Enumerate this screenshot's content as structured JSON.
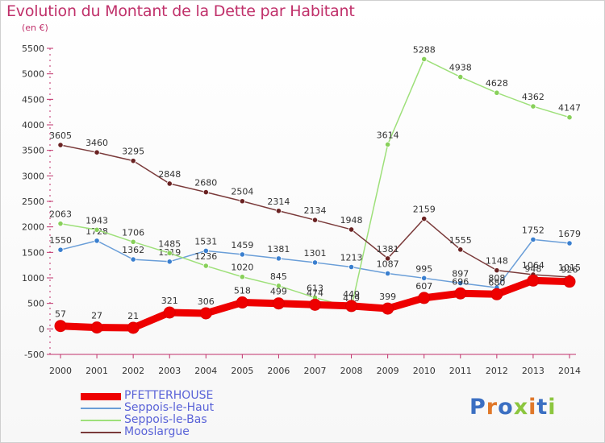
{
  "title": "Evolution du Montant de la Dette par Habitant",
  "subtitle": "(en €)",
  "logo": {
    "text": "Proxiti",
    "letter_colors": [
      "#3b6fc2",
      "#e0782a",
      "#3b6fc2",
      "#8cc63f",
      "#e0782a",
      "#3b6fc2",
      "#8cc63f"
    ]
  },
  "chart_data": {
    "type": "line",
    "title": "Evolution du Montant de la Dette par Habitant",
    "subtitle": "(en €)",
    "x": [
      2000,
      2001,
      2002,
      2003,
      2004,
      2005,
      2006,
      2007,
      2008,
      2009,
      2010,
      2011,
      2012,
      2013,
      2014
    ],
    "x_tick_labels": [
      "2000",
      "2001",
      "2002",
      "2003",
      "2004",
      "2005",
      "2006",
      "2007",
      "2008",
      "2009",
      "2010",
      "2011",
      "2012",
      "2013",
      "2014"
    ],
    "ylim": [
      -500,
      5500
    ],
    "y_ticks": [
      -500,
      0,
      500,
      1000,
      1500,
      2000,
      2500,
      3000,
      3500,
      4000,
      4500,
      5000,
      5500
    ],
    "y_tick_labels": [
      "-500",
      "0",
      "500",
      "1000",
      "1500",
      "2000",
      "2500",
      "3000",
      "3500",
      "4000",
      "4500",
      "5000",
      "5500"
    ],
    "grid": false,
    "legend_position": "bottom-left",
    "series": [
      {
        "name": "PFETTERHOUSE",
        "color": "#ee0000",
        "marker_color": "#ee0000",
        "thick": true,
        "values": [
          57,
          27,
          21,
          321,
          306,
          518,
          499,
          474,
          449,
          399,
          607,
          696,
          680,
          948,
          926
        ],
        "labels": [
          "57",
          "27",
          "21",
          "321",
          "306",
          "518",
          "499",
          "474",
          "449",
          "399",
          "607",
          "696",
          "680",
          "948",
          "926"
        ]
      },
      {
        "name": "Seppois-le-Haut",
        "color": "#6a9ed8",
        "marker_color": "#3a7fcf",
        "thick": false,
        "values": [
          1550,
          1728,
          1362,
          1319,
          1531,
          1459,
          1381,
          1301,
          1213,
          1087,
          995,
          897,
          808,
          1752,
          1679
        ],
        "labels": [
          "1550",
          "1728",
          "1362",
          "1319",
          "1531",
          "1459",
          "1381",
          "1301",
          "1213",
          "1087",
          "995",
          "897",
          "808",
          "1752",
          "1679"
        ]
      },
      {
        "name": "Seppois-le-Bas",
        "color": "#9ee07a",
        "marker_color": "#88d05a",
        "thick": false,
        "values": [
          2063,
          1943,
          1706,
          1485,
          1236,
          1020,
          845,
          613,
          419,
          3614,
          5288,
          4938,
          4628,
          4362,
          4147
        ],
        "labels": [
          "2063",
          "1943",
          "1706",
          "1485",
          "1236",
          "1020",
          "845",
          "613",
          "419",
          "3614",
          "5288",
          "4938",
          "4628",
          "4362",
          "4147"
        ]
      },
      {
        "name": "Mooslargue",
        "color": "#7a3a3a",
        "marker_color": "#6a2222",
        "thick": false,
        "values": [
          3605,
          3460,
          3295,
          2848,
          2680,
          2504,
          2314,
          2134,
          1948,
          1381,
          2159,
          1555,
          1148,
          1064,
          1015
        ],
        "labels": [
          "3605",
          "3460",
          "3295",
          "2848",
          "2680",
          "2504",
          "2314",
          "2134",
          "1948",
          "1381",
          "2159",
          "1555",
          "1148",
          "1064",
          "1015"
        ]
      }
    ]
  }
}
